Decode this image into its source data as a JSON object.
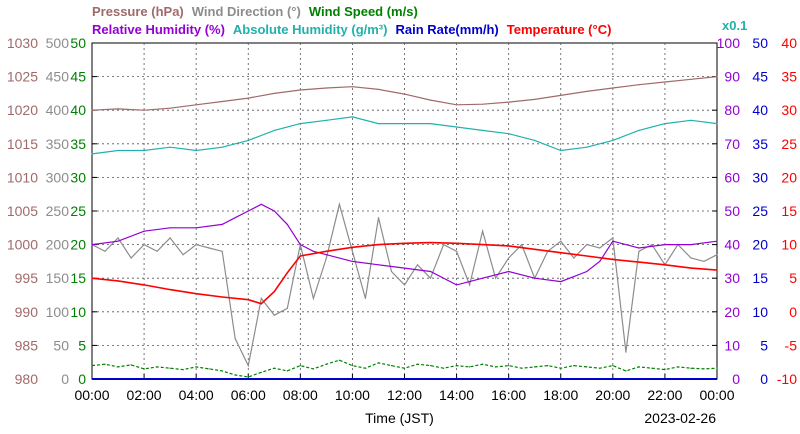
{
  "chart_data": {
    "type": "line",
    "date_label": "2023-02-26",
    "xlabel": "Time (JST)",
    "x_ticks": [
      "00:00",
      "02:00",
      "04:00",
      "06:00",
      "08:00",
      "10:00",
      "12:00",
      "14:00",
      "16:00",
      "18:00",
      "20:00",
      "22:00",
      "00:00"
    ],
    "header_row1": [
      {
        "text": "Pressure (hPa)",
        "color": "#a06a6a"
      },
      {
        "text": "Wind Direction (°)",
        "color": "#8c8c8c"
      },
      {
        "text": "Wind Speed (m/s)",
        "color": "#008000"
      }
    ],
    "header_row2": [
      {
        "text": "Relative Humidity (%)",
        "color": "#9400d3"
      },
      {
        "text": "Absolute Humidity (g/m³)",
        "color": "#20b2aa"
      },
      {
        "text": "Rain Rate(mm/h)",
        "color": "#0000cd"
      },
      {
        "text": "Temperature (°C)",
        "color": "#ff0000"
      }
    ],
    "abs_humidity_scale": {
      "text": "x0.1",
      "color": "#20b2aa"
    },
    "axes": {
      "pressure": {
        "color": "#a06a6a",
        "ticks": [
          "980",
          "985",
          "990",
          "995",
          "1000",
          "1005",
          "1010",
          "1015",
          "1020",
          "1025",
          "1030"
        ]
      },
      "wind_dir": {
        "color": "#8c8c8c",
        "ticks": [
          "0",
          "50",
          "100",
          "150",
          "200",
          "250",
          "300",
          "350",
          "400",
          "450",
          "500"
        ]
      },
      "wind_speed": {
        "color": "#008000",
        "ticks": [
          "0",
          "5",
          "10",
          "15",
          "20",
          "25",
          "30",
          "35",
          "40",
          "45",
          "50"
        ]
      },
      "humidity": {
        "color": "#9400d3",
        "ticks": [
          "0",
          "10",
          "20",
          "30",
          "40",
          "50",
          "60",
          "70",
          "80",
          "90",
          "100"
        ]
      },
      "rain": {
        "color": "#0000cd",
        "ticks": [
          "0",
          "5",
          "10",
          "15",
          "20",
          "25",
          "30",
          "35",
          "40",
          "45",
          "50"
        ]
      },
      "temperature": {
        "color": "#ff0000",
        "ticks": [
          "-10",
          "-5",
          "0",
          "5",
          "10",
          "15",
          "20",
          "25",
          "30",
          "35",
          "40"
        ]
      }
    },
    "series": [
      {
        "name": "Pressure (hPa)",
        "color": "#a06a6a",
        "x": [
          0,
          1,
          2,
          3,
          4,
          5,
          6,
          7,
          8,
          9,
          10,
          11,
          12,
          13,
          14,
          15,
          16,
          17,
          18,
          19,
          20,
          21,
          22,
          23,
          24
        ],
        "values": [
          1020.0,
          1020.2,
          1020.0,
          1020.3,
          1020.8,
          1021.3,
          1021.8,
          1022.5,
          1023.0,
          1023.3,
          1023.5,
          1023.1,
          1022.4,
          1021.5,
          1020.8,
          1020.9,
          1021.2,
          1021.6,
          1022.2,
          1022.8,
          1023.3,
          1023.8,
          1024.2,
          1024.6,
          1025.0
        ]
      },
      {
        "name": "Wind Direction (°)",
        "color": "#8c8c8c",
        "x": [
          0,
          0.5,
          1,
          1.5,
          2,
          2.5,
          3,
          3.5,
          4,
          4.5,
          5,
          5.5,
          6,
          6.5,
          7,
          7.5,
          8,
          8.5,
          9,
          9.5,
          10,
          10.5,
          11,
          11.5,
          12,
          12.5,
          13,
          13.5,
          14,
          14.5,
          15,
          15.5,
          16,
          16.5,
          17,
          17.5,
          18,
          18.5,
          19,
          19.5,
          20,
          20.5,
          21,
          21.5,
          22,
          22.5,
          23,
          23.5,
          24
        ],
        "values": [
          200,
          190,
          210,
          180,
          200,
          190,
          210,
          185,
          200,
          195,
          190,
          60,
          20,
          120,
          95,
          105,
          200,
          120,
          180,
          260,
          190,
          120,
          240,
          160,
          140,
          170,
          150,
          200,
          190,
          140,
          220,
          150,
          180,
          200,
          150,
          190,
          205,
          180,
          200,
          195,
          210,
          40,
          190,
          200,
          170,
          200,
          180,
          175,
          185
        ]
      },
      {
        "name": "Wind Speed (m/s)",
        "color": "#008000",
        "x": [
          0,
          0.5,
          1,
          1.5,
          2,
          2.5,
          3,
          3.5,
          4,
          4.5,
          5,
          5.5,
          6,
          6.5,
          7,
          7.5,
          8,
          8.5,
          9,
          9.5,
          10,
          10.5,
          11,
          11.5,
          12,
          12.5,
          13,
          13.5,
          14,
          14.5,
          15,
          15.5,
          16,
          16.5,
          17,
          17.5,
          18,
          18.5,
          19,
          19.5,
          20,
          20.5,
          21,
          21.5,
          22,
          22.5,
          23,
          23.5,
          24
        ],
        "values": [
          2.0,
          2.2,
          1.8,
          2.1,
          1.5,
          1.8,
          1.6,
          1.4,
          1.8,
          1.5,
          1.2,
          0.6,
          0.3,
          1.0,
          1.6,
          1.2,
          2.0,
          1.5,
          2.2,
          2.8,
          2.0,
          1.6,
          2.4,
          2.0,
          1.6,
          2.2,
          2.0,
          1.6,
          2.0,
          1.8,
          2.2,
          1.8,
          2.0,
          1.6,
          1.8,
          2.0,
          1.6,
          2.0,
          1.8,
          1.6,
          2.0,
          1.2,
          1.8,
          1.6,
          1.4,
          1.8,
          1.6,
          1.5,
          1.6
        ]
      },
      {
        "name": "Relative Humidity (%)",
        "color": "#9400d3",
        "x": [
          0,
          1,
          2,
          3,
          4,
          5,
          5.5,
          6,
          6.5,
          7,
          7.5,
          8,
          8.5,
          9,
          10,
          11,
          12,
          13,
          14,
          15,
          16,
          17,
          18,
          19,
          19.5,
          20,
          20.5,
          21,
          22,
          23,
          24
        ],
        "values": [
          40,
          41,
          44,
          45,
          45,
          46,
          48,
          50,
          52,
          50,
          46,
          40,
          38,
          37,
          35,
          34,
          33,
          32,
          28,
          30,
          32,
          30,
          29,
          32,
          35,
          41,
          40,
          39,
          40,
          40,
          41
        ]
      },
      {
        "name": "Absolute Humidity (g/m³)",
        "color": "#20b2aa",
        "x": [
          0,
          1,
          2,
          3,
          4,
          5,
          6,
          7,
          8,
          9,
          10,
          11,
          12,
          13,
          14,
          15,
          16,
          17,
          18,
          19,
          20,
          21,
          22,
          23,
          24
        ],
        "values": [
          6.7,
          6.8,
          6.8,
          6.9,
          6.8,
          6.9,
          7.1,
          7.4,
          7.6,
          7.7,
          7.8,
          7.6,
          7.6,
          7.6,
          7.5,
          7.4,
          7.3,
          7.1,
          6.8,
          6.9,
          7.1,
          7.4,
          7.6,
          7.7,
          7.6
        ]
      },
      {
        "name": "Rain Rate(mm/h)",
        "color": "#0000cd",
        "x": [
          0,
          24
        ],
        "values": [
          0,
          0
        ]
      },
      {
        "name": "Temperature (°C)",
        "color": "#ff0000",
        "x": [
          0,
          1,
          2,
          3,
          4,
          5,
          6,
          6.5,
          7,
          7.5,
          8,
          9,
          10,
          11,
          12,
          13,
          14,
          15,
          16,
          17,
          18,
          19,
          20,
          21,
          22,
          23,
          24
        ],
        "values": [
          5.0,
          4.6,
          4.0,
          3.3,
          2.7,
          2.2,
          1.8,
          1.2,
          3.0,
          5.8,
          8.3,
          9.0,
          9.6,
          10.0,
          10.2,
          10.3,
          10.2,
          10.0,
          9.8,
          9.3,
          8.8,
          8.3,
          7.8,
          7.4,
          7.0,
          6.5,
          6.2
        ]
      }
    ]
  }
}
